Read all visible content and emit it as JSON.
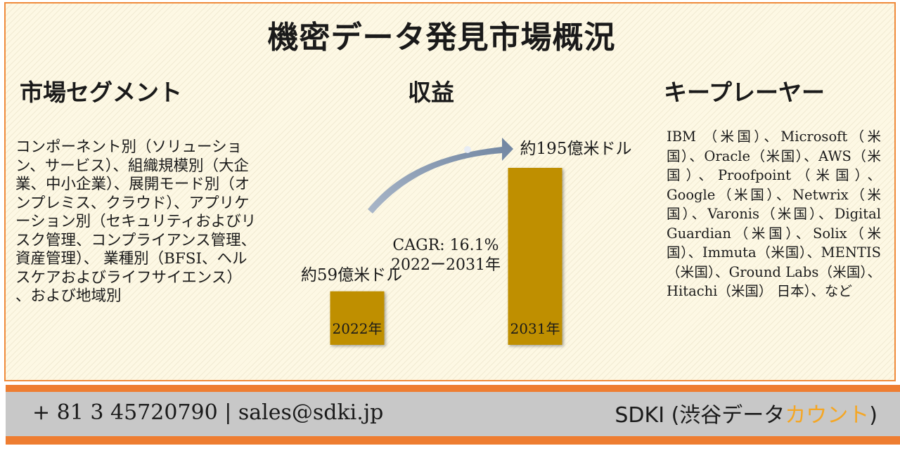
{
  "title": "機密データ発見市場概況",
  "segment": {
    "heading": "市場セグメント",
    "body": "コンポーネント別（ソリューション、サービス）、組織規模別（大企業、中小企業）、展開モード別（オンプレミス、クラウド）、アプリケーション別（セキュリティおよびリスク管理、コンプライアンス管理、資産管理）、 業種別（BFSI、ヘルスケアおよびライフサイエンス） 、および地域別"
  },
  "revenue": {
    "heading": "収益",
    "cagr": "CAGR: 16.1%",
    "period": "2022ー2031年"
  },
  "key_players": {
    "heading": "キープレーヤー",
    "body": "IBM （米国）、Microsoft（米国）、Oracle（米国）、AWS（米国）、Proofpoint（米国）、Google（米国）、Netwrix（米国）、Varonis（米国）、Digital Guardian（米国）、Solix（米国）、Immuta（米国）、MENTIS（米国）、Ground Labs（米国）、Hitachi（米国） 日本）、など"
  },
  "chart_data": {
    "type": "bar",
    "categories": [
      "2022年",
      "2031年"
    ],
    "values": [
      59,
      195
    ],
    "value_labels": [
      "約59億米ドル",
      "約195億米ドル"
    ],
    "unit": "億米ドル",
    "ylim": [
      0,
      195
    ],
    "grid": false,
    "bar_color": "#bf8f00"
  },
  "footer": {
    "contact": "+ 81 3 45720790 | sales@sdki.jp",
    "brand_main": "SDKI (渋谷データ",
    "brand_accent": "カウント",
    "brand_end": ")"
  },
  "colors": {
    "accent_orange": "#ee7d31",
    "arrow": "#8497b0"
  }
}
